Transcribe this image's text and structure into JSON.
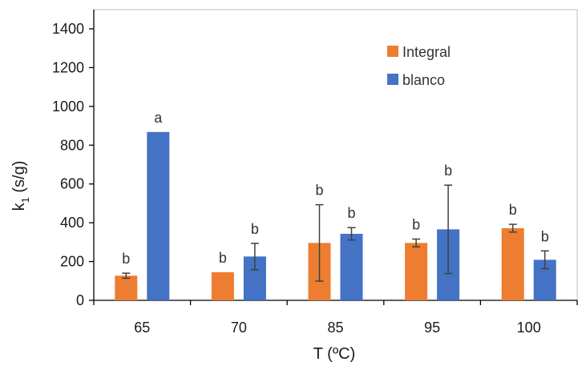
{
  "chart_data": {
    "type": "bar",
    "categories": [
      "65",
      "70",
      "85",
      "95",
      "100"
    ],
    "series": [
      {
        "name": "Integral",
        "color": "#ED7D31",
        "values": [
          127,
          145,
          296,
          296,
          372
        ],
        "errors": [
          13,
          0,
          197,
          20,
          20
        ],
        "labels": [
          "b",
          "b",
          "b",
          "b",
          "b"
        ]
      },
      {
        "name": "blanco",
        "color": "#4472C4",
        "values": [
          868,
          226,
          343,
          366,
          209
        ],
        "errors": [
          0,
          68,
          32,
          228,
          46
        ],
        "labels": [
          "a",
          "b",
          "b",
          "b",
          "b"
        ]
      }
    ],
    "xlabel": "T (ºC)",
    "ylabel": "k",
    "ylabel_subscript": "1",
    "ylabel_unit": " (s/g)",
    "ylim": [
      0,
      1400
    ],
    "yticks": [
      "0",
      "200",
      "400",
      "600",
      "800",
      "1000",
      "1200",
      "1400"
    ],
    "grid": false,
    "legend_position": "top-right"
  }
}
